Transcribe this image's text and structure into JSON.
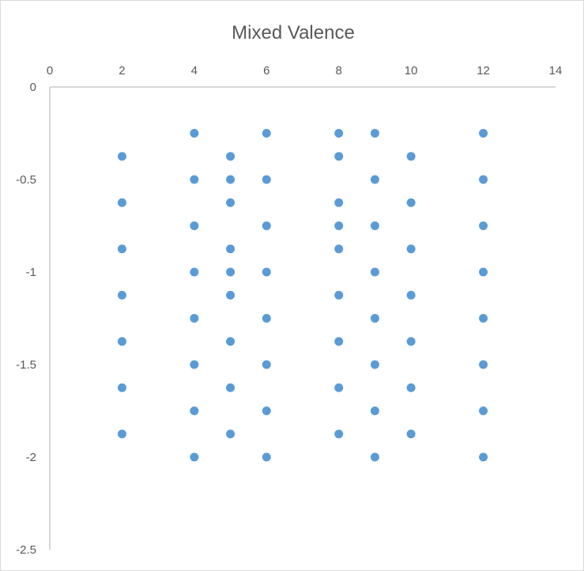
{
  "chart_data": {
    "type": "scatter",
    "title": "Mixed Valence",
    "xlabel": "",
    "ylabel": "",
    "xlim": [
      0,
      14
    ],
    "ylim": [
      -2.5,
      0
    ],
    "x_ticks": [
      "0",
      "2",
      "4",
      "6",
      "8",
      "10",
      "12",
      "14"
    ],
    "y_ticks": [
      "0",
      "-0.5",
      "-1",
      "-1.5",
      "-2",
      "-2.5"
    ],
    "x_axis_position": "top",
    "grid": false,
    "legend": "none",
    "marker_color": "#5b9bd5",
    "series": [
      {
        "points": [
          [
            2,
            -0.375
          ],
          [
            2,
            -0.625
          ],
          [
            2,
            -0.875
          ],
          [
            2,
            -1.125
          ],
          [
            2,
            -1.375
          ],
          [
            2,
            -1.625
          ],
          [
            2,
            -1.875
          ],
          [
            4,
            -0.25
          ],
          [
            4,
            -0.5
          ],
          [
            4,
            -0.75
          ],
          [
            4,
            -1.0
          ],
          [
            4,
            -1.25
          ],
          [
            4,
            -1.5
          ],
          [
            4,
            -1.75
          ],
          [
            4,
            -2.0
          ],
          [
            5,
            -0.375
          ],
          [
            5,
            -0.5
          ],
          [
            5,
            -0.625
          ],
          [
            5,
            -0.875
          ],
          [
            5,
            -1.0
          ],
          [
            5,
            -1.125
          ],
          [
            5,
            -1.375
          ],
          [
            5,
            -1.625
          ],
          [
            5,
            -1.875
          ],
          [
            6,
            -0.25
          ],
          [
            6,
            -0.5
          ],
          [
            6,
            -0.75
          ],
          [
            6,
            -1.0
          ],
          [
            6,
            -1.25
          ],
          [
            6,
            -1.5
          ],
          [
            6,
            -1.75
          ],
          [
            6,
            -2.0
          ],
          [
            8,
            -0.25
          ],
          [
            8,
            -0.375
          ],
          [
            8,
            -0.625
          ],
          [
            8,
            -0.75
          ],
          [
            8,
            -0.875
          ],
          [
            8,
            -1.125
          ],
          [
            8,
            -1.375
          ],
          [
            8,
            -1.625
          ],
          [
            8,
            -1.875
          ],
          [
            9,
            -0.25
          ],
          [
            9,
            -0.5
          ],
          [
            9,
            -0.75
          ],
          [
            9,
            -1.0
          ],
          [
            9,
            -1.25
          ],
          [
            9,
            -1.5
          ],
          [
            9,
            -1.75
          ],
          [
            9,
            -2.0
          ],
          [
            10,
            -0.375
          ],
          [
            10,
            -0.625
          ],
          [
            10,
            -0.875
          ],
          [
            10,
            -1.125
          ],
          [
            10,
            -1.375
          ],
          [
            10,
            -1.625
          ],
          [
            10,
            -1.875
          ],
          [
            12,
            -0.25
          ],
          [
            12,
            -0.5
          ],
          [
            12,
            -0.75
          ],
          [
            12,
            -1.0
          ],
          [
            12,
            -1.25
          ],
          [
            12,
            -1.5
          ],
          [
            12,
            -1.75
          ],
          [
            12,
            -2.0
          ]
        ]
      }
    ]
  }
}
